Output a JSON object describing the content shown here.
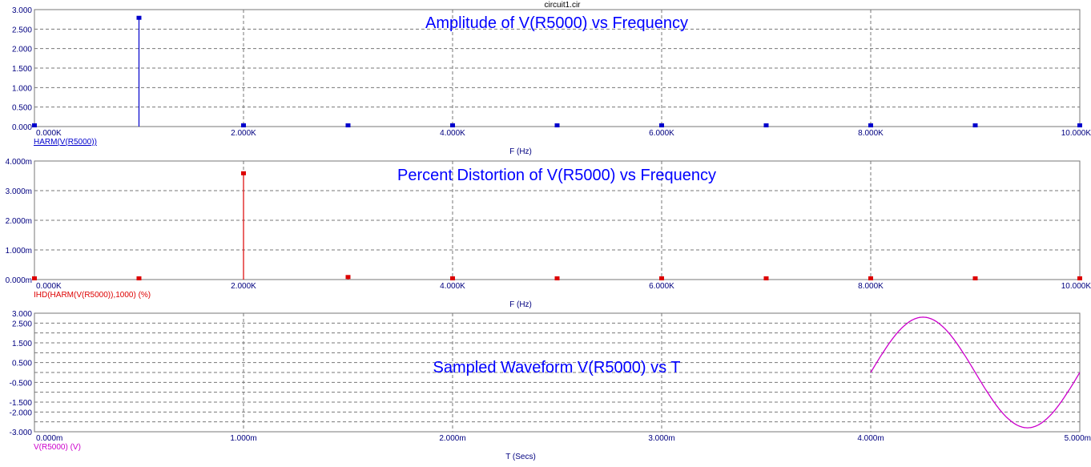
{
  "file_title": "circuit1.cir",
  "chart_data": [
    {
      "type": "bar",
      "title": "Amplitude of V(R5000) vs Frequency",
      "trace_label": "HARM(V(R5000))",
      "xlabel": "F (Hz)",
      "color": "#0000cc",
      "xlim": [
        0,
        10000
      ],
      "ylim": [
        0,
        3
      ],
      "ystep": 0.5,
      "xgrid": [
        2000,
        4000,
        6000,
        8000
      ],
      "xticks": [
        "0.000K",
        "2.000K",
        "4.000K",
        "6.000K",
        "8.000K",
        "10.000K"
      ],
      "yticks": [
        "0.000",
        "0.500",
        "1.000",
        "1.500",
        "2.000",
        "2.500",
        "3.000"
      ],
      "x": [
        0,
        1000,
        2000,
        3000,
        4000,
        5000,
        6000,
        7000,
        8000,
        9000,
        10000
      ],
      "values": [
        0,
        2.8,
        0.0001,
        0,
        0,
        0,
        0,
        0,
        0,
        0,
        0
      ]
    },
    {
      "type": "bar",
      "title": "Percent Distortion of V(R5000) vs Frequency",
      "trace_label": "IHD(HARM(V(R5000)),1000) (%)",
      "xlabel": "F (Hz)",
      "color": "#dd0000",
      "xlim": [
        0,
        10000
      ],
      "ylim": [
        0,
        0.004
      ],
      "ystep": 0.001,
      "xgrid": [
        2000,
        4000,
        6000,
        8000
      ],
      "xticks": [
        "0.000K",
        "2.000K",
        "4.000K",
        "6.000K",
        "8.000K",
        "10.000K"
      ],
      "yticks": [
        "0.000m",
        "1.000m",
        "2.000m",
        "3.000m",
        "4.000m"
      ],
      "x": [
        0,
        1000,
        2000,
        3000,
        4000,
        5000,
        6000,
        7000,
        8000,
        9000,
        10000
      ],
      "values": [
        0,
        0,
        0.0036,
        0.0001,
        0,
        0,
        0,
        0,
        0,
        0,
        0
      ]
    },
    {
      "type": "line",
      "title": "Sampled Waveform  V(R5000) vs T",
      "trace_label": "V(R5000) (V)",
      "xlabel": "T (Secs)",
      "color": "#cc00cc",
      "xlim": [
        0,
        0.005
      ],
      "ylim": [
        -3,
        3
      ],
      "ystep": 0.5,
      "xgrid": [
        0.001,
        0.002,
        0.003,
        0.004
      ],
      "xticks": [
        "0.000m",
        "1.000m",
        "2.000m",
        "3.000m",
        "4.000m",
        "5.000m"
      ],
      "yticks": [
        "3.000",
        "2.500",
        "1.500",
        "0.500",
        "-0.500",
        "-1.500",
        "-2.000",
        "-3.000"
      ],
      "ytick_values": [
        3,
        2.5,
        1.5,
        0.5,
        -0.5,
        -1.5,
        -2,
        -3
      ],
      "signal": {
        "t_start": 0.004,
        "t_end": 0.005,
        "amplitude": 2.8,
        "frequency_hz": 1000
      }
    }
  ]
}
